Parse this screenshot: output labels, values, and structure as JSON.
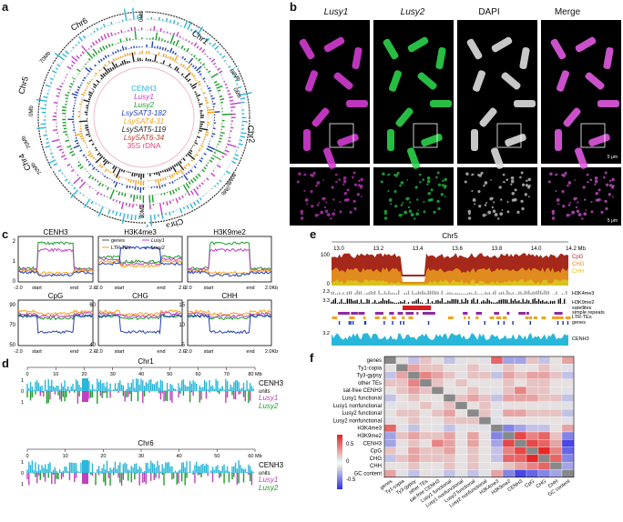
{
  "panel_labels": {
    "a": "a",
    "b": "b",
    "c": "c",
    "d": "d",
    "e": "e",
    "f": "f"
  },
  "circos": {
    "chromosomes": [
      "Chr1",
      "Chr2",
      "Chr3",
      "Chr4",
      "Chr5",
      "Chr6"
    ],
    "mb_labels": [
      "0Mb",
      "70Mb",
      "80Mb",
      "0Mb",
      "80Mb",
      "0Mb",
      "80Mb",
      "70Mb",
      "70Mb",
      "0Mb"
    ],
    "legend": [
      {
        "label": "CENH3",
        "color": "#29b7d9",
        "italic": false
      },
      {
        "label": "Lusy1",
        "color": "#c23fc2",
        "italic": true
      },
      {
        "label": "Lusy2",
        "color": "#1f9d2b",
        "italic": true
      },
      {
        "label": "LsySAT3-182",
        "color": "#2340b5",
        "italic": true
      },
      {
        "label": "LsySAT4-31",
        "color": "#f2a21b",
        "italic": true
      },
      {
        "label": "LsySAT5-119",
        "color": "#222222",
        "italic": true
      },
      {
        "label": "LsySAT6-34",
        "color": "#c0392b",
        "italic": true
      },
      {
        "label": "35S rDNA",
        "color": "#e0407a",
        "italic": false
      }
    ]
  },
  "microscopy": {
    "columns": [
      "Lusy1",
      "Lusy2",
      "DAPI",
      "Merge"
    ],
    "scalebar": "5 μm"
  },
  "profiles": {
    "top": [
      {
        "title": "CENH3",
        "yticks": [
          "2",
          "1",
          "0"
        ]
      },
      {
        "title": "H3K4me3",
        "yticks": []
      },
      {
        "title": "H3K9me2",
        "yticks": []
      }
    ],
    "bottom": [
      {
        "title": "CpG",
        "yticks": [
          "90",
          "70",
          "50"
        ]
      },
      {
        "title": "CHG",
        "yticks": [
          "60",
          "40"
        ]
      },
      {
        "title": "CHH",
        "yticks": [
          "15",
          "10",
          "5"
        ]
      }
    ],
    "xlabels": {
      "left": "-2.0",
      "start": "start",
      "end": "end",
      "right": "2.0"
    },
    "right_last": "2.0Kb",
    "legend": [
      {
        "label": "genes",
        "color": "#555555"
      },
      {
        "label": "Lusy1",
        "color": "#c23fc2"
      },
      {
        "label": "LTR-TEs",
        "color": "#f2a21b"
      },
      {
        "label": "Lusy2",
        "color": "#2340b5"
      }
    ]
  },
  "tracks_d": {
    "chr1": {
      "title": "Chr1",
      "ticks": [
        "0",
        "10",
        "20",
        "30",
        "40",
        "50",
        "60",
        "70",
        "80 Mb"
      ]
    },
    "chr6": {
      "title": "Chr6",
      "ticks": [
        "0",
        "10",
        "20",
        "30",
        "40",
        "50",
        "60 Mb"
      ]
    },
    "labels": [
      "CENH3",
      "units",
      "Lusy1",
      "Lusy2"
    ],
    "yt": [
      "1",
      "0",
      "1"
    ]
  },
  "browser_e": {
    "title": "Chr5",
    "ticks": [
      "13.0",
      "13.2",
      "13.4",
      "13.6",
      "13.8",
      "14.0",
      "14.2 Mb"
    ],
    "methyl_labels": [
      {
        "t": "CpG",
        "c": "#b03020"
      },
      {
        "t": "CHG",
        "c": "#e08b1d"
      },
      {
        "t": "CHH",
        "c": "#d9c21e"
      }
    ],
    "tracks": [
      "H3K4me3",
      "H3K9me2",
      "satellites",
      "simple repeats",
      "LTR-TEs",
      "genes",
      "CENH3"
    ],
    "yvals": [
      "100",
      "0",
      "2.3",
      "3.3",
      "3.2"
    ]
  },
  "heatmap_f": {
    "rows": [
      "genes",
      "Ty1-copia",
      "Ty3-gypsy",
      "other TEs",
      "sat-free CENH3",
      "Lusy1 functional",
      "Lusy1 nonfunctional",
      "Lusy2 functional",
      "Lusy2 nonfunctional",
      "H3K4me3",
      "H3K9me2",
      "CENH3",
      "CpG",
      "CHG",
      "CHH",
      "GC content"
    ],
    "cols": [
      "genes",
      "Ty1-copia",
      "Ty3-gypsy",
      "other TEs",
      "sat-free CENH3",
      "Lusy1 functional",
      "Lusy1 nonfunctional",
      "Lusy2 functional",
      "Lusy2 nonfunctional",
      "H3K4me3",
      "H3K9me2",
      "CENH3",
      "CpG",
      "CHG",
      "CHH",
      "GC content"
    ],
    "scale": [
      "0.5",
      "0",
      "-0.5"
    ],
    "matrix": [
      [
        null,
        0.1,
        -0.2,
        0.2,
        0.1,
        -0.2,
        -0.1,
        0.1,
        -0.1,
        0.5,
        -0.3,
        -0.3,
        0.2,
        -0.2,
        0.1,
        0.3
      ],
      [
        0.1,
        null,
        0.3,
        0.2,
        0.2,
        0.1,
        0.1,
        0.2,
        0.1,
        -0.1,
        0.2,
        0.1,
        0.1,
        0.2,
        0.1,
        -0.1
      ],
      [
        -0.2,
        0.3,
        null,
        0.4,
        0.3,
        0.2,
        0.1,
        0.2,
        0.2,
        -0.2,
        0.3,
        0.2,
        0.3,
        0.3,
        0.2,
        -0.2
      ],
      [
        0.2,
        0.2,
        0.4,
        null,
        0.2,
        0.1,
        0.2,
        0.1,
        0.1,
        0.1,
        0.2,
        0.1,
        0.2,
        0.2,
        0.1,
        0.1
      ],
      [
        0.1,
        0.2,
        0.3,
        0.2,
        null,
        0.1,
        0.1,
        0.2,
        0.1,
        -0.1,
        0.2,
        0.4,
        0.2,
        0.2,
        0.1,
        -0.1
      ],
      [
        -0.2,
        0.1,
        0.2,
        0.1,
        0.1,
        null,
        0.2,
        0.3,
        0.2,
        -0.2,
        0.3,
        0.3,
        0.3,
        0.2,
        0.2,
        -0.2
      ],
      [
        -0.1,
        0.1,
        0.1,
        0.2,
        0.1,
        0.2,
        null,
        0.1,
        0.2,
        -0.1,
        0.1,
        0.1,
        0.1,
        0.1,
        0.1,
        -0.1
      ],
      [
        0.1,
        0.2,
        0.2,
        0.1,
        0.2,
        0.3,
        0.1,
        null,
        0.2,
        -0.1,
        0.3,
        0.3,
        0.2,
        0.2,
        0.2,
        -0.2
      ],
      [
        -0.1,
        0.1,
        0.2,
        0.1,
        0.1,
        0.2,
        0.2,
        0.2,
        null,
        -0.1,
        0.1,
        0.1,
        0.1,
        0.1,
        0.1,
        -0.1
      ],
      [
        0.5,
        -0.1,
        -0.2,
        0.1,
        -0.1,
        -0.2,
        -0.1,
        -0.1,
        -0.1,
        null,
        -0.4,
        -0.3,
        -0.2,
        -0.2,
        0.1,
        0.3
      ],
      [
        -0.3,
        0.2,
        0.3,
        0.2,
        0.2,
        0.3,
        0.1,
        0.3,
        0.1,
        -0.4,
        null,
        0.6,
        0.4,
        0.5,
        0.2,
        -0.4
      ],
      [
        -0.3,
        0.1,
        0.2,
        0.1,
        0.4,
        0.3,
        0.1,
        0.3,
        0.1,
        -0.3,
        0.6,
        null,
        0.6,
        0.5,
        0.3,
        -0.6
      ],
      [
        0.2,
        0.1,
        0.3,
        0.2,
        0.2,
        0.3,
        0.1,
        0.2,
        0.1,
        -0.2,
        0.4,
        0.6,
        null,
        0.7,
        0.4,
        -0.5
      ],
      [
        -0.2,
        0.2,
        0.3,
        0.2,
        0.2,
        0.2,
        0.1,
        0.2,
        0.1,
        -0.2,
        0.5,
        0.5,
        0.7,
        null,
        0.5,
        -0.4
      ],
      [
        0.1,
        0.1,
        0.2,
        0.1,
        0.1,
        0.2,
        0.1,
        0.2,
        0.1,
        0.1,
        0.2,
        0.3,
        0.4,
        0.5,
        null,
        -0.3
      ],
      [
        0.3,
        -0.1,
        -0.2,
        0.1,
        -0.1,
        -0.2,
        -0.1,
        -0.2,
        -0.1,
        0.3,
        -0.4,
        -0.6,
        -0.5,
        -0.4,
        -0.3,
        null
      ]
    ]
  }
}
